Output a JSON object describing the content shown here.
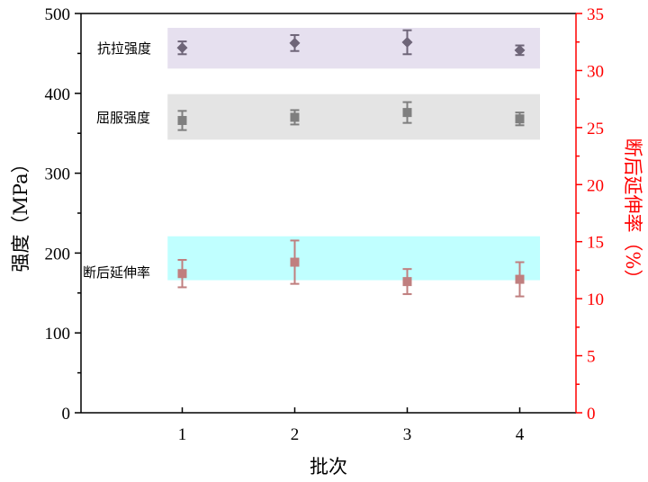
{
  "chart_data": {
    "type": "scatter",
    "xlabel": "批次",
    "ylabel": "强度（MPa）",
    "y2label": "断后延伸率（%）",
    "x_ticks": [
      1,
      2,
      3,
      4
    ],
    "xlim": [
      0.1,
      4.5
    ],
    "ylim": [
      0,
      500
    ],
    "y_ticks": [
      0,
      100,
      200,
      300,
      400,
      500
    ],
    "y2lim": [
      0,
      35
    ],
    "y2_ticks": [
      0,
      5,
      10,
      15,
      20,
      25,
      30,
      35
    ],
    "grid": false,
    "colors": {
      "right_axis": "#ff0000",
      "tensile": "#6e6578",
      "yield": "#7f7f7f",
      "elongation": "#c07f7f"
    },
    "bands": [
      {
        "label": "抗拉强度",
        "y_range": [
          431,
          482
        ],
        "x_range": [
          0.87,
          4.18
        ],
        "color": "#e6e0ef",
        "axis": "left"
      },
      {
        "label": "屈服强度",
        "y_range": [
          342,
          399
        ],
        "x_range": [
          0.87,
          4.18
        ],
        "color": "#e4e4e4",
        "axis": "left"
      },
      {
        "label": "断后延伸率",
        "y_range": [
          166,
          221
        ],
        "x_range": [
          0.87,
          4.18
        ],
        "color": "#c0ffff",
        "axis": "left"
      }
    ],
    "series": [
      {
        "name": "抗拉强度",
        "axis": "left",
        "marker": "diamond",
        "x": [
          1,
          2,
          3,
          4
        ],
        "y": [
          457,
          463,
          464,
          454
        ],
        "err": [
          8,
          10,
          15,
          6
        ]
      },
      {
        "name": "屈服强度",
        "axis": "left",
        "marker": "square",
        "x": [
          1,
          2,
          3,
          4
        ],
        "y": [
          366,
          370,
          376,
          368
        ],
        "err": [
          12,
          9,
          13,
          8
        ]
      },
      {
        "name": "断后延伸率",
        "axis": "right",
        "marker": "square",
        "x": [
          1,
          2,
          3,
          4
        ],
        "y": [
          12.2,
          13.2,
          11.5,
          11.7
        ],
        "err": [
          1.2,
          1.9,
          1.1,
          1.5
        ]
      }
    ]
  }
}
